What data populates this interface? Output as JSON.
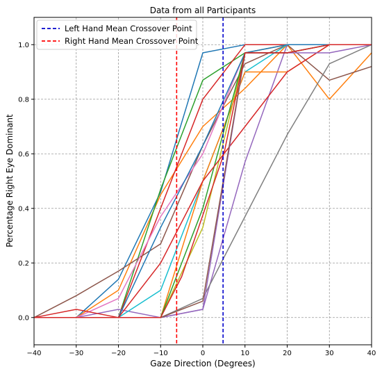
{
  "chart_data": {
    "type": "line",
    "title": "Data from all Participants",
    "xlabel": "Gaze Direction (Degrees)",
    "ylabel": "Percentage Right Eye Dominant",
    "xlim": [
      -40,
      40
    ],
    "ylim": [
      -0.1,
      1.1
    ],
    "x_ticks": [
      -40,
      -30,
      -20,
      -10,
      0,
      10,
      20,
      30,
      40
    ],
    "y_ticks": [
      0.0,
      0.2,
      0.4,
      0.6,
      0.8,
      1.0
    ],
    "x_tick_labels": [
      "−40",
      "−30",
      "−20",
      "−10",
      "0",
      "10",
      "20",
      "30",
      "40"
    ],
    "y_tick_labels": [
      "0.0",
      "0.2",
      "0.4",
      "0.6",
      "0.8",
      "1.0"
    ],
    "grid": true,
    "legend_position": "top-left",
    "x": [
      -40,
      -30,
      -20,
      -10,
      -5,
      0,
      5,
      10,
      20,
      30,
      40
    ],
    "series": [
      {
        "color": "#1f77b4",
        "values": [
          0,
          0,
          0.14,
          0.46,
          null,
          0.97,
          null,
          1.0,
          1.0,
          1.0,
          1.0
        ]
      },
      {
        "color": "#ff7f0e",
        "values": [
          0,
          0,
          0.1,
          0.45,
          null,
          0.7,
          null,
          0.84,
          1.0,
          0.8,
          0.97
        ]
      },
      {
        "color": "#2ca02c",
        "values": [
          0,
          0,
          0,
          0.47,
          null,
          0.87,
          null,
          0.97,
          0.97,
          1.0,
          1.0
        ]
      },
      {
        "color": "#d62728",
        "values": [
          0,
          0,
          0,
          0.4,
          null,
          0.8,
          null,
          1.0,
          1.0,
          1.0,
          1.0
        ]
      },
      {
        "color": "#9467bd",
        "values": [
          0,
          0,
          0.03,
          0,
          null,
          0.03,
          null,
          0.57,
          1.0,
          1.0,
          1.0
        ]
      },
      {
        "color": "#8c564b",
        "values": [
          0,
          0.08,
          0.17,
          0.27,
          null,
          0.63,
          null,
          0.93,
          1.0,
          0.87,
          0.92
        ]
      },
      {
        "color": "#e377c2",
        "values": [
          0,
          0,
          0.07,
          0.37,
          null,
          0.6,
          null,
          0.97,
          1.0,
          1.0,
          1.0
        ]
      },
      {
        "color": "#7f7f7f",
        "values": [
          0,
          0,
          0,
          0,
          null,
          0.07,
          null,
          0.37,
          0.67,
          0.93,
          1.0
        ]
      },
      {
        "color": "#bcbd22",
        "values": [
          0,
          0,
          0,
          0,
          null,
          0.33,
          null,
          0.97,
          1.0,
          1.0,
          1.0
        ]
      },
      {
        "color": "#17becf",
        "values": [
          0,
          0,
          0,
          0.1,
          null,
          0.5,
          null,
          0.9,
          1.0,
          1.0,
          1.0
        ]
      },
      {
        "color": "#1f77b4",
        "values": [
          0,
          0,
          0,
          0.33,
          null,
          0.63,
          null,
          0.97,
          1.0,
          1.0,
          1.0
        ]
      },
      {
        "color": "#ff7f0e",
        "values": [
          0,
          0,
          0,
          0,
          null,
          0.5,
          null,
          0.9,
          0.9,
          1.0,
          1.0
        ]
      },
      {
        "color": "#2ca02c",
        "values": [
          0,
          0,
          0,
          0,
          null,
          0.4,
          null,
          0.97,
          0.97,
          1.0,
          1.0
        ]
      },
      {
        "color": "#d62728",
        "values": [
          0,
          0.03,
          0,
          0.2,
          null,
          0.5,
          null,
          0.7,
          0.9,
          1.0,
          1.0
        ]
      },
      {
        "color": "#9467bd",
        "values": [
          0,
          0,
          0,
          0,
          null,
          0.03,
          null,
          0.97,
          0.97,
          0.97,
          1.0
        ]
      },
      {
        "color": "#8c564b",
        "values": [
          0,
          0,
          0,
          0,
          null,
          0.06,
          null,
          0.97,
          0.97,
          1.0,
          1.0
        ]
      },
      {
        "color": "#d62728",
        "values": [
          0,
          0,
          0,
          0,
          0.15,
          null,
          0.6,
          0.97,
          0.97,
          1.0,
          1.0
        ]
      }
    ],
    "vlines": [
      {
        "name": "Left Hand Mean Crossover Point",
        "x": 4.8,
        "color": "#0000cc",
        "style": "dashed"
      },
      {
        "name": "Right Hand Mean Crossover Point",
        "x": -6.2,
        "color": "#ff0000",
        "style": "dashed"
      }
    ]
  }
}
